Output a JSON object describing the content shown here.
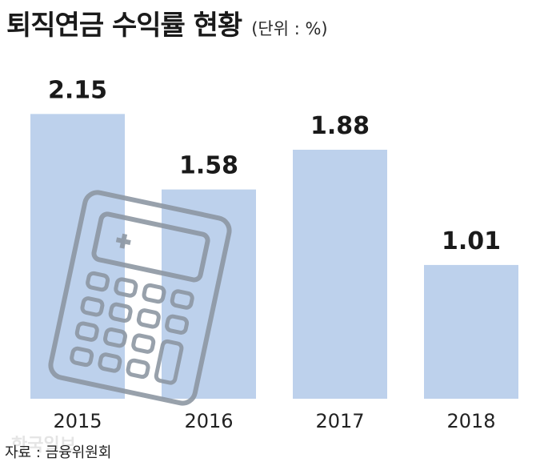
{
  "header": {
    "title": "퇴직연금 수익률 현황",
    "unit": "(단위 : %)"
  },
  "footer": {
    "source": "자료 : 금융위원회",
    "watermark": "한국일보"
  },
  "icons": {
    "illustration": "calculator-icon"
  },
  "colors": {
    "bar": "#bdd1ec",
    "label": "#1a1a1a",
    "illustration": "#8d97a3"
  },
  "chart_data": {
    "type": "bar",
    "title": "퇴직연금 수익률 현황",
    "unit": "%",
    "categories": [
      "2015",
      "2016",
      "2017",
      "2018"
    ],
    "values": [
      2.15,
      1.58,
      1.88,
      1.01
    ],
    "data_labels": [
      "2.15",
      "1.58",
      "1.88",
      "1.01"
    ],
    "ylim": [
      0,
      2.4
    ],
    "grid": false,
    "legend": "none"
  }
}
